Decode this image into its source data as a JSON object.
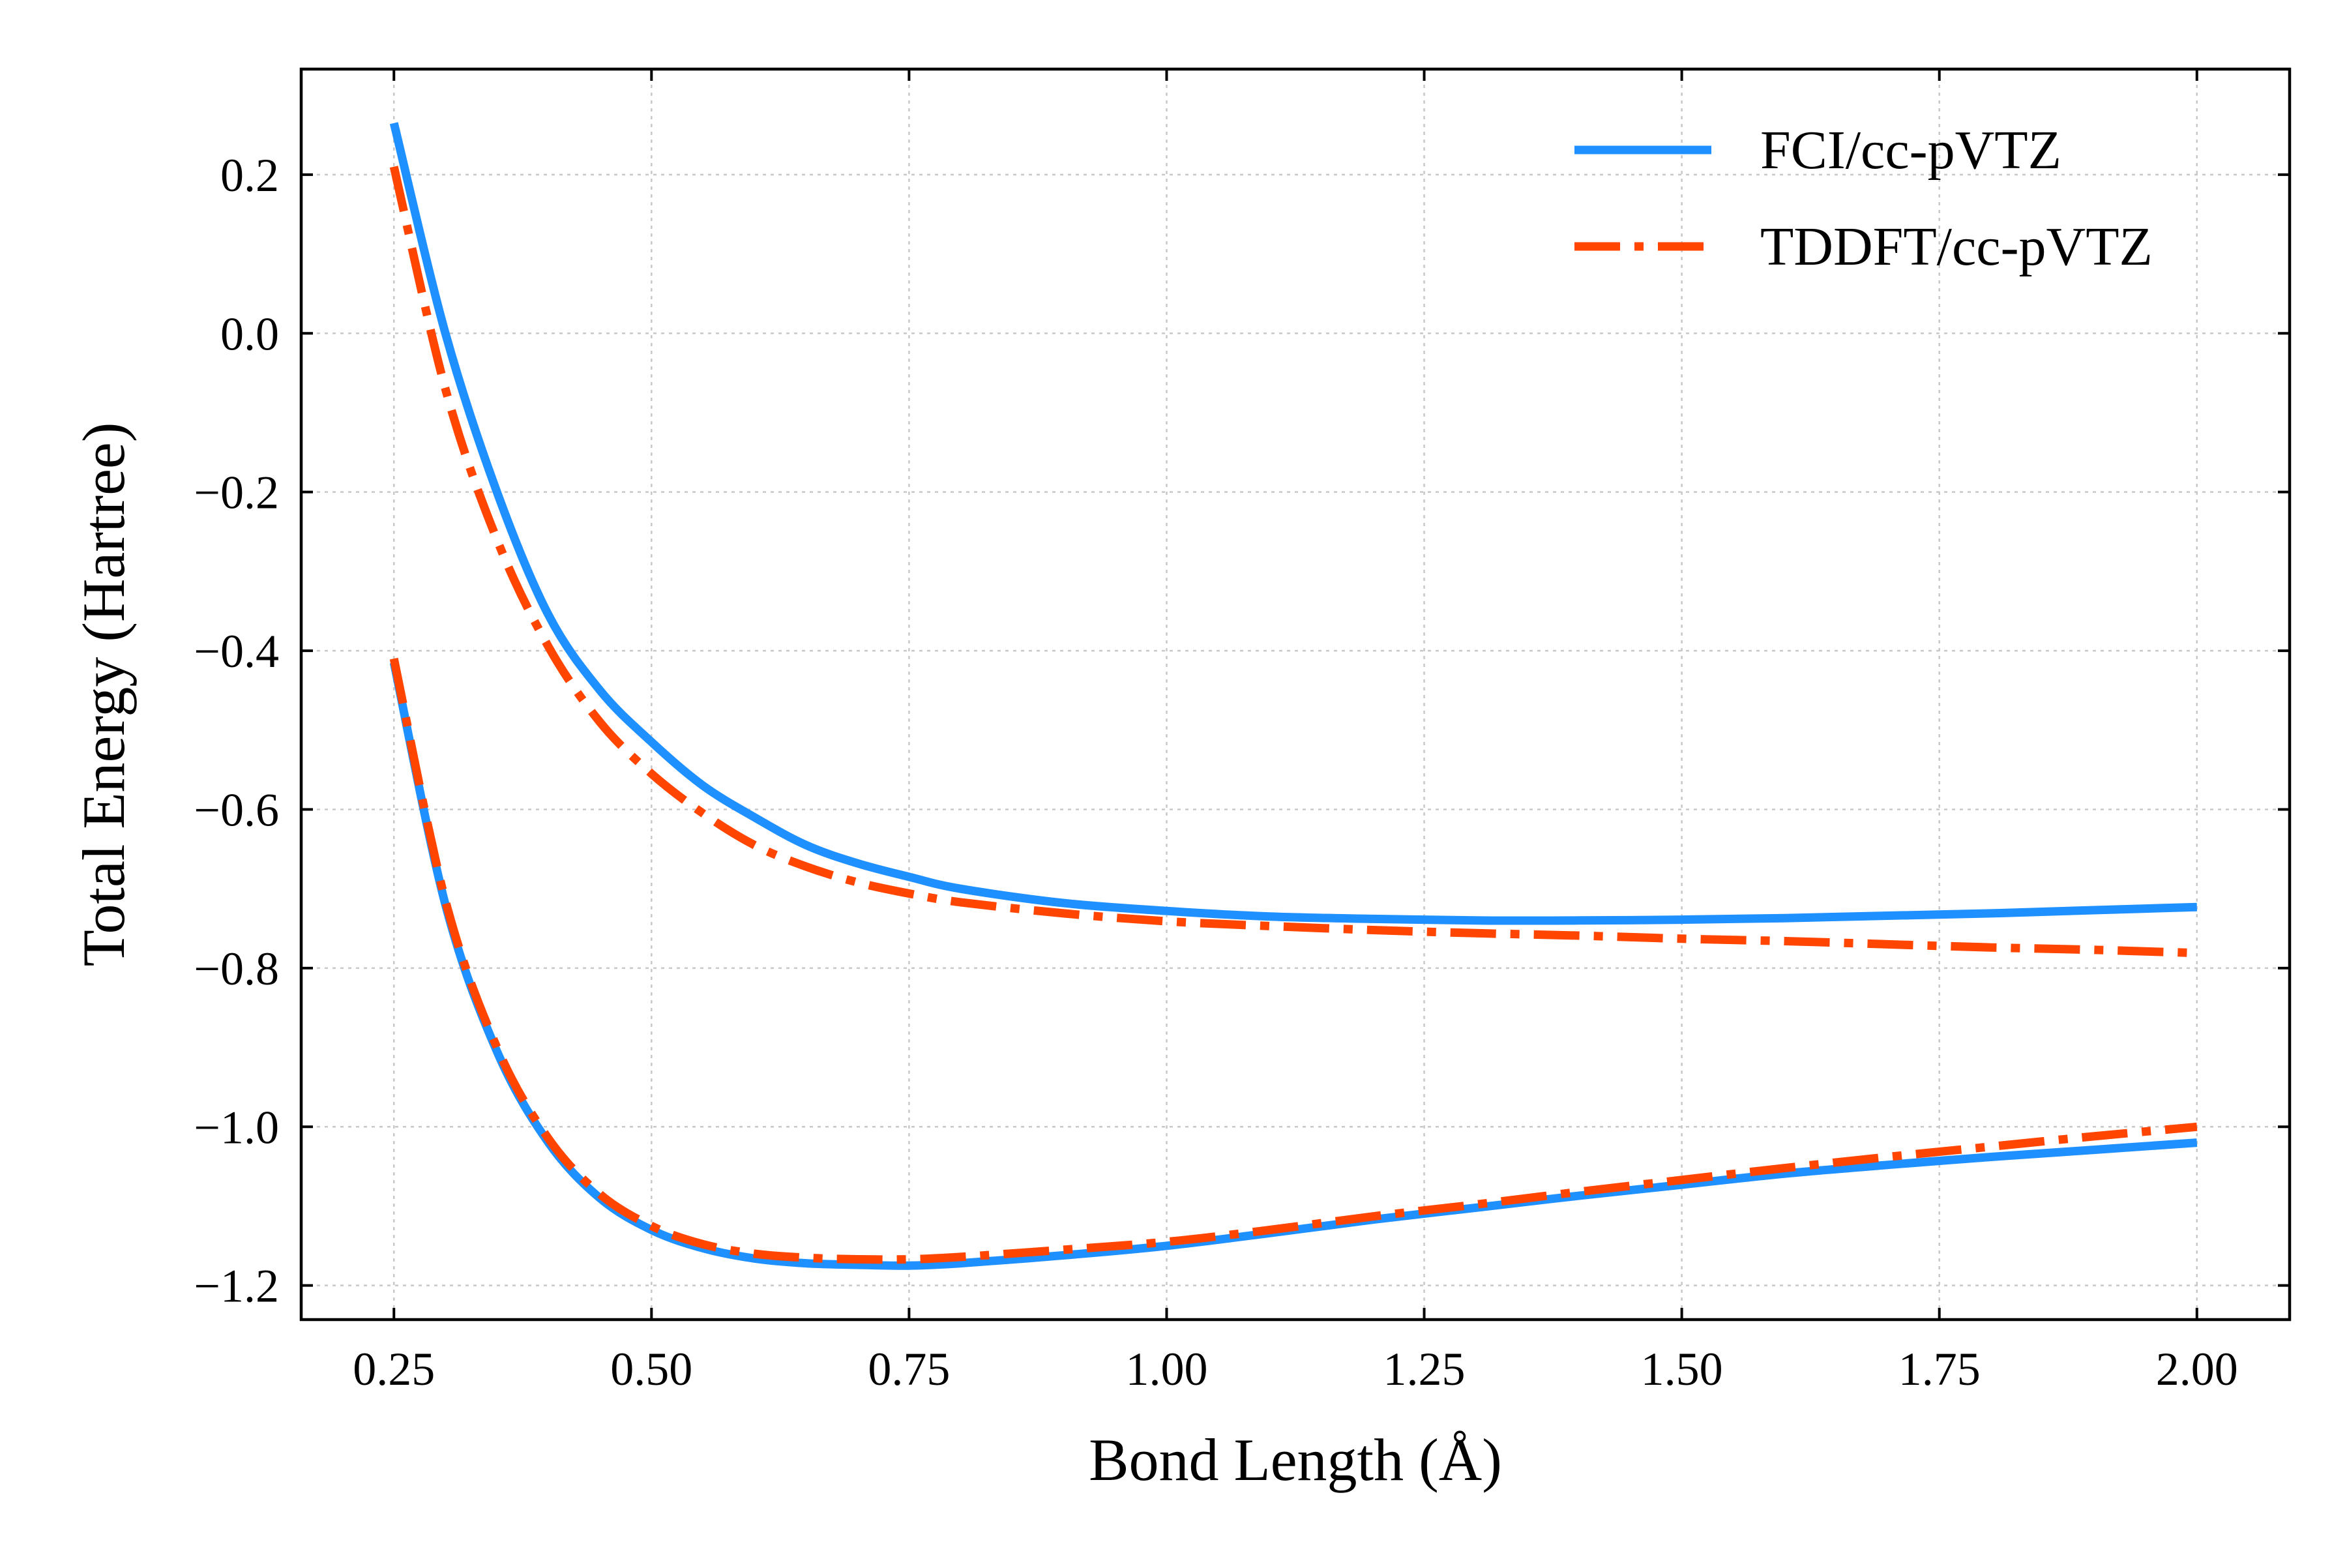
{
  "chart_data": {
    "type": "line",
    "title": "",
    "xlabel": "Bond Length (Å)",
    "ylabel": "Total Energy (Hartree)",
    "xlim": [
      0.16,
      2.09
    ],
    "ylim": [
      -1.243,
      0.333
    ],
    "xticks": [
      0.25,
      0.5,
      0.75,
      1.0,
      1.25,
      1.5,
      1.75,
      2.0
    ],
    "xtick_labels": [
      "0.25",
      "0.50",
      "0.75",
      "1.00",
      "1.25",
      "1.50",
      "1.75",
      "2.00"
    ],
    "yticks": [
      0.2,
      0.0,
      -0.2,
      -0.4,
      -0.6,
      -0.8,
      -1.0,
      -1.2
    ],
    "ytick_labels": [
      "0.2",
      "0.0",
      "−0.2",
      "−0.4",
      "−0.6",
      "−0.8",
      "−1.0",
      "−1.2"
    ],
    "grid": true,
    "legend_position": "top-right",
    "x": [
      0.25,
      0.3,
      0.35,
      0.4,
      0.45,
      0.5,
      0.55,
      0.6,
      0.65,
      0.7,
      0.75,
      0.8,
      0.9,
      1.0,
      1.1,
      1.2,
      1.3,
      1.4,
      1.5,
      1.6,
      1.7,
      1.8,
      1.9,
      2.0
    ],
    "series": [
      {
        "name": "FCI/cc-pVTZ",
        "color": "#1e90ff",
        "style": "solid",
        "curves": [
          [
            0.265,
            0.0,
            -0.2,
            -0.355,
            -0.45,
            -0.515,
            -0.57,
            -0.61,
            -0.645,
            -0.668,
            -0.685,
            -0.7,
            -0.718,
            -0.728,
            -0.735,
            -0.738,
            -0.74,
            -0.74,
            -0.739,
            -0.737,
            -0.734,
            -0.731,
            -0.727,
            -0.723
          ],
          [
            -0.415,
            -0.72,
            -0.905,
            -1.02,
            -1.09,
            -1.13,
            -1.153,
            -1.166,
            -1.172,
            -1.174,
            -1.175,
            -1.172,
            -1.162,
            -1.15,
            -1.134,
            -1.117,
            -1.102,
            -1.087,
            -1.073,
            -1.059,
            -1.048,
            -1.038,
            -1.029,
            -1.02
          ]
        ]
      },
      {
        "name": "TDDFT/cc-pVTZ",
        "color": "#ff4500",
        "style": "dashdot",
        "curves": [
          [
            0.21,
            -0.07,
            -0.26,
            -0.395,
            -0.49,
            -0.555,
            -0.605,
            -0.645,
            -0.672,
            -0.692,
            -0.706,
            -0.717,
            -0.731,
            -0.741,
            -0.747,
            -0.752,
            -0.756,
            -0.759,
            -0.763,
            -0.766,
            -0.77,
            -0.774,
            -0.777,
            -0.781
          ],
          [
            -0.41,
            -0.715,
            -0.9,
            -1.015,
            -1.085,
            -1.125,
            -1.148,
            -1.16,
            -1.165,
            -1.167,
            -1.167,
            -1.164,
            -1.155,
            -1.145,
            -1.13,
            -1.113,
            -1.098,
            -1.082,
            -1.067,
            -1.052,
            -1.038,
            -1.025,
            -1.012,
            -1.0
          ]
        ]
      }
    ]
  }
}
